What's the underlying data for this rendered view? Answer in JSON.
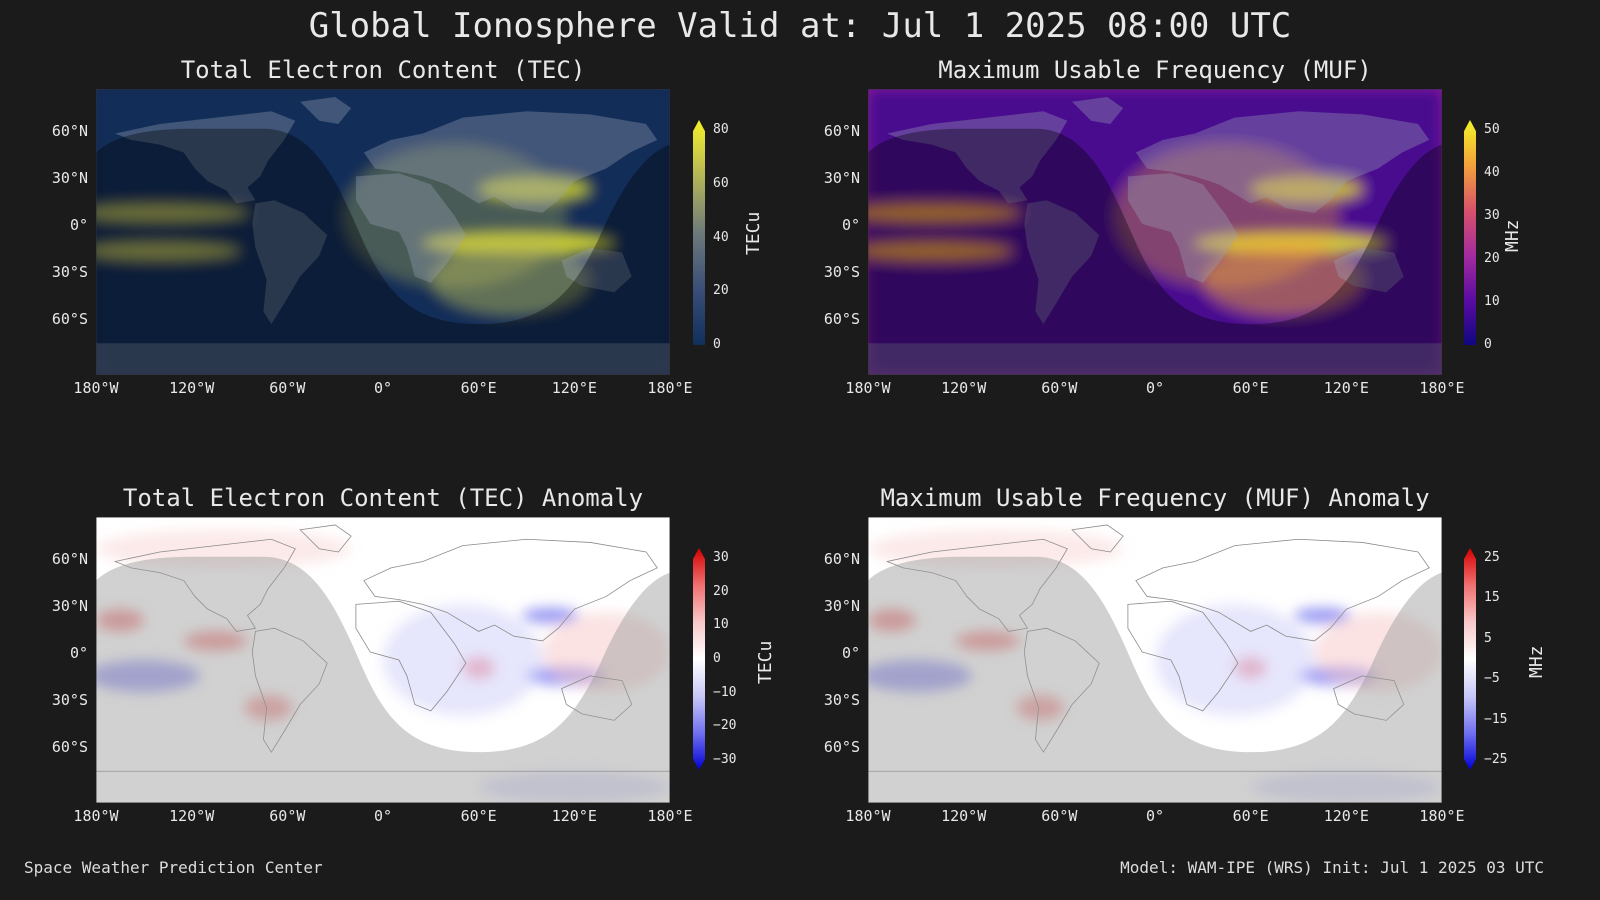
{
  "title": "Global Ionosphere Valid at: Jul 1 2025 08:00 UTC",
  "footer": {
    "left": "Space Weather Prediction Center",
    "right": "Model: WAM-IPE (WRS) Init: Jul 1 2025 03 UTC"
  },
  "lat_labels": [
    "60°N",
    "30°N",
    "0°",
    "30°S",
    "60°S"
  ],
  "lon_labels": [
    "180°W",
    "120°W",
    "60°W",
    "0°",
    "60°E",
    "120°E",
    "180°E"
  ],
  "panels": [
    {
      "title": "Total Electron Content (TEC)",
      "colorbar_label": "TECu",
      "colorbar_ticks": [
        "80",
        "60",
        "40",
        "20",
        "0"
      ],
      "colormap": [
        "#f6f228",
        "#b4b558",
        "#6e7a7a",
        "#3a4e78",
        "#10305a"
      ],
      "background": "#0f2a55"
    },
    {
      "title": "Maximum Usable Frequency (MUF)",
      "colorbar_label": "MHz",
      "colorbar_ticks": [
        "50",
        "40",
        "30",
        "20",
        "10",
        "0"
      ],
      "colormap": [
        "#f3f527",
        "#f2a23a",
        "#d8526a",
        "#a52c9e",
        "#5a0ca2",
        "#0f0780"
      ],
      "background": "#8a1aa0"
    },
    {
      "title": "Total Electron Content (TEC) Anomaly",
      "colorbar_label": "TECu",
      "colorbar_ticks": [
        "30",
        "20",
        "10",
        "0",
        "−10",
        "−20",
        "−30"
      ],
      "colormap": [
        "#d40000",
        "#f07070",
        "#f8c8c8",
        "#ffffff",
        "#c8c8f8",
        "#7070f0",
        "#0000d4"
      ],
      "background": "#ffffff"
    },
    {
      "title": "Maximum Usable Frequency (MUF) Anomaly",
      "colorbar_label": "MHz",
      "colorbar_ticks": [
        "25",
        "15",
        "5",
        "−5",
        "−15",
        "−25"
      ],
      "colormap": [
        "#d40000",
        "#f07070",
        "#f8c8c8",
        "#ffffff",
        "#c8c8f8",
        "#7070f0",
        "#0000d4"
      ],
      "background": "#ffffff"
    }
  ]
}
